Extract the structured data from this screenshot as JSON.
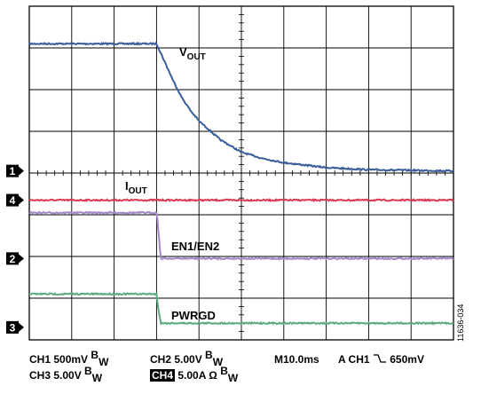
{
  "chart_data": {
    "type": "line",
    "title": "",
    "xlabel": "",
    "ylabel": "",
    "x_divisions": 10,
    "y_divisions": 8,
    "grid": true,
    "x_unit": "ms",
    "x_scale_per_div": 10,
    "trigger_time_ms": 30,
    "series": [
      {
        "name": "VOUT",
        "label_main": "V",
        "label_sub": "OUT",
        "channel": "1",
        "color": "#3A5E9A",
        "scale": "500mV/div",
        "x_ms": [
          0,
          30,
          32,
          34,
          36,
          38,
          40,
          45,
          50,
          55,
          60,
          70,
          80,
          100
        ],
        "y_div": [
          7.1,
          7.1,
          6.65,
          6.2,
          5.8,
          5.5,
          5.25,
          4.8,
          4.5,
          4.35,
          4.25,
          4.13,
          4.08,
          4.05
        ]
      },
      {
        "name": "IOUT",
        "label_main": "I",
        "label_sub": "OUT",
        "channel": "4",
        "color": "#D93A52",
        "scale": "5.00A/div",
        "x_ms": [
          0,
          100
        ],
        "y_div": [
          3.35,
          3.35
        ]
      },
      {
        "name": "EN1/EN2",
        "label_main": "EN1/EN2",
        "label_sub": "",
        "channel": "2",
        "color": "#A58CC8",
        "scale": "5.00V/div",
        "x_ms": [
          0,
          30,
          30.2,
          31,
          100
        ],
        "y_div": [
          3.05,
          3.05,
          2.9,
          1.95,
          1.95
        ]
      },
      {
        "name": "PWRGD",
        "label_main": "PWRGD",
        "label_sub": "",
        "channel": "3",
        "color": "#5DAA7E",
        "scale": "5.00V/div",
        "x_ms": [
          0,
          30,
          30.2,
          31,
          100
        ],
        "y_div": [
          1.1,
          1.1,
          0.9,
          0.4,
          0.4
        ]
      }
    ],
    "channel_markers": [
      {
        "id": "1",
        "y_div": 4.05
      },
      {
        "id": "4",
        "y_div": 3.35
      },
      {
        "id": "2",
        "y_div": 1.95
      },
      {
        "id": "3",
        "y_div": 0.3
      }
    ]
  },
  "status": {
    "ch1": "CH1 500mV",
    "ch2": "CH2  5.00V",
    "ch3": "CH3 5.00V",
    "ch4_box": "CH4",
    "ch4": " 5.00A Ω",
    "bw_b": "B",
    "bw_w": "W",
    "timebase": "M10.0ms",
    "trigger_prefix": "A CH1",
    "trigger_icon": "falling-edge-icon",
    "trigger_level": "650mV"
  },
  "figure_id": "11636-034"
}
